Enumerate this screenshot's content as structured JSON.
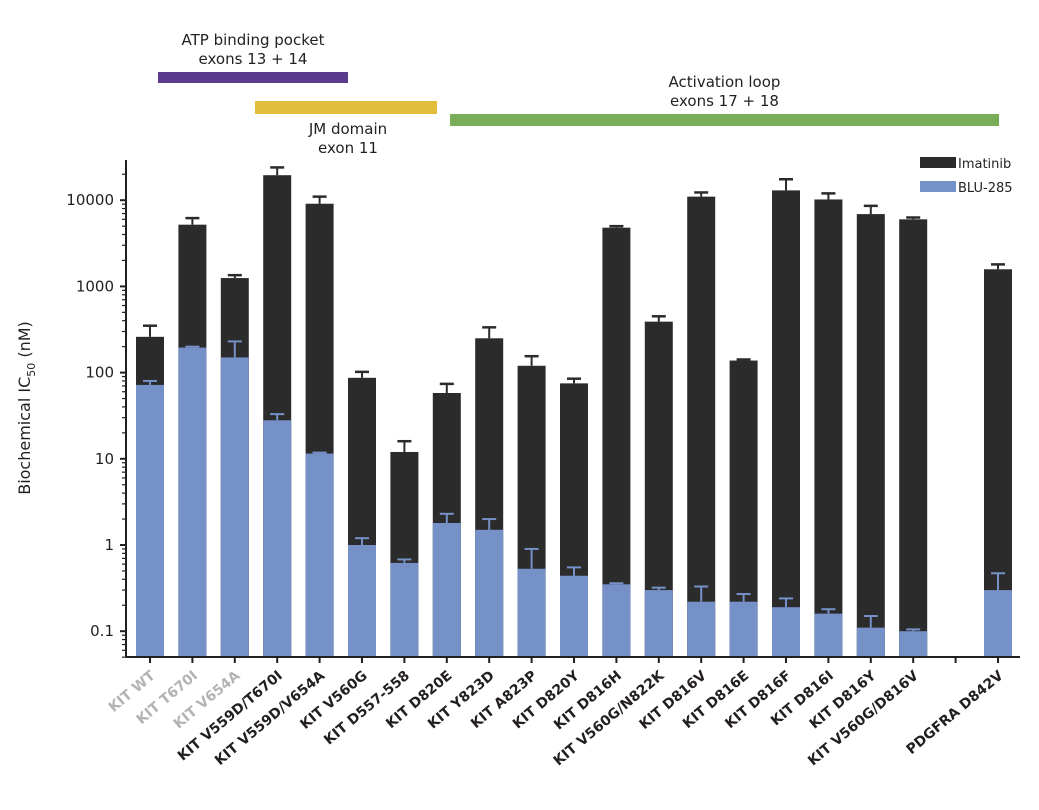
{
  "chart_data": {
    "type": "bar",
    "subtype": "overlapped-log",
    "title": "",
    "xlabel": "",
    "ylabel": "Biochemical IC50 (nM)",
    "ylabel_main": "Biochemical IC",
    "ylabel_sub": "50",
    "ylabel_unit": " (nM)",
    "yscale": "log",
    "ylim": [
      0.05,
      30000
    ],
    "yticks": [
      0.1,
      1,
      10,
      100,
      1000,
      10000
    ],
    "ytick_labels": [
      "0.1",
      "1",
      "10",
      "100",
      "1000",
      "10000"
    ],
    "grid": false,
    "legend": {
      "position": "top-right",
      "entries": [
        "Imatinib",
        "BLU-285"
      ]
    },
    "colors": {
      "Imatinib": "#2b2b2b",
      "BLU-285": "#7690c8"
    },
    "categories": [
      "KIT WT",
      "KIT T670I",
      "KIT V654A",
      "KIT V559D/T670I",
      "KIT V559D/V654A",
      "KIT V560G",
      "KIT D557-558",
      "KIT D820E",
      "KIT Y823D",
      "KIT A823P",
      "KIT D820Y",
      "KIT D816H",
      "KIT V560G/N822K",
      "KIT D816V",
      "KIT D816E",
      "KIT D816F",
      "KIT D816I",
      "KIT D816Y",
      "KIT V560G/D816V",
      "",
      "PDGFRA D842V"
    ],
    "category_muted": [
      true,
      true,
      true,
      false,
      false,
      false,
      false,
      false,
      false,
      false,
      false,
      false,
      false,
      false,
      false,
      false,
      false,
      false,
      false,
      false,
      false
    ],
    "series": [
      {
        "name": "Imatinib",
        "values": [
          260,
          5200,
          1250,
          19500,
          9100,
          87,
          12,
          58,
          250,
          120,
          75,
          4800,
          390,
          11000,
          138,
          13000,
          10200,
          6900,
          6000,
          null,
          1580
        ],
        "err_upper": [
          350,
          6200,
          1350,
          24000,
          11000,
          102,
          16,
          74,
          335,
          155,
          85,
          5000,
          450,
          12300,
          142,
          17500,
          12000,
          8600,
          6300,
          null,
          1800
        ]
      },
      {
        "name": "BLU-285",
        "values": [
          72,
          195,
          150,
          28,
          11.5,
          1.0,
          0.62,
          1.8,
          1.5,
          0.53,
          0.44,
          0.35,
          0.3,
          0.22,
          0.22,
          0.19,
          0.16,
          0.11,
          0.1,
          null,
          0.3
        ],
        "err_upper": [
          80,
          200,
          230,
          33,
          11.8,
          1.2,
          0.68,
          2.3,
          2.0,
          0.9,
          0.55,
          0.36,
          0.32,
          0.33,
          0.27,
          0.24,
          0.18,
          0.15,
          0.105,
          null,
          0.47
        ]
      }
    ],
    "annotations": [
      {
        "id": "atp",
        "lines": [
          "ATP binding pocket",
          "exons 13 + 14"
        ],
        "color": "#5b3b8c",
        "from": "KIT WT",
        "to": "KIT V559D/V654A",
        "label_position": "above"
      },
      {
        "id": "jm",
        "lines": [
          "JM domain",
          "exon 11"
        ],
        "color": "#e2bd3a",
        "from": "KIT V559D/T670I",
        "to": "KIT D820E",
        "label_position": "below"
      },
      {
        "id": "al",
        "lines": [
          "Activation loop",
          "exons 17 + 18"
        ],
        "color": "#7aad59",
        "from": "KIT D820E",
        "to": "PDGFRA D842V",
        "label_position": "above"
      }
    ]
  }
}
